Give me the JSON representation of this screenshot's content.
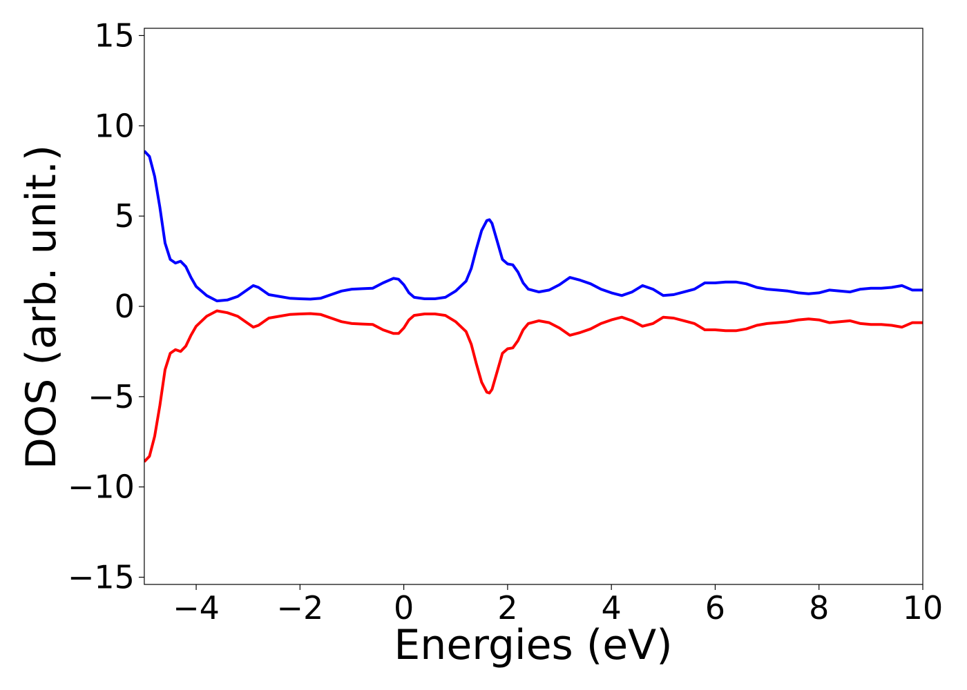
{
  "chart_data": {
    "type": "line",
    "xlabel": "Energies (eV)",
    "ylabel": "DOS (arb. unit.)",
    "x": [
      -5,
      -4.9,
      -4.8,
      -4.7,
      -4.6,
      -4.5,
      -4.4,
      -4.3,
      -4.2,
      -4.1,
      -4.0,
      -3.8,
      -3.6,
      -3.4,
      -3.2,
      -3.0,
      -2.9,
      -2.8,
      -2.6,
      -2.4,
      -2.2,
      -2.0,
      -1.8,
      -1.6,
      -1.4,
      -1.2,
      -1.0,
      -0.8,
      -0.6,
      -0.4,
      -0.2,
      -0.1,
      0,
      0.1,
      0.2,
      0.4,
      0.6,
      0.8,
      1.0,
      1.2,
      1.3,
      1.4,
      1.5,
      1.6,
      1.65,
      1.7,
      1.8,
      1.9,
      2.0,
      2.1,
      2.2,
      2.3,
      2.4,
      2.6,
      2.8,
      3.0,
      3.2,
      3.4,
      3.6,
      3.8,
      4.0,
      4.2,
      4.4,
      4.6,
      4.8,
      5.0,
      5.2,
      5.4,
      5.6,
      5.8,
      6.0,
      6.2,
      6.4,
      6.6,
      6.8,
      7.0,
      7.2,
      7.4,
      7.6,
      7.8,
      8.0,
      8.2,
      8.4,
      8.6,
      8.8,
      9.0,
      9.2,
      9.4,
      9.6,
      9.8,
      10
    ],
    "series": [
      {
        "color": "#0000ff",
        "values": [
          8.6,
          8.3,
          7.2,
          5.5,
          3.5,
          2.6,
          2.4,
          2.5,
          2.2,
          1.6,
          1.1,
          0.6,
          0.3,
          0.35,
          0.55,
          0.95,
          1.15,
          1.05,
          0.65,
          0.55,
          0.45,
          0.42,
          0.4,
          0.45,
          0.65,
          0.85,
          0.95,
          0.98,
          1.0,
          1.3,
          1.55,
          1.5,
          1.2,
          0.75,
          0.5,
          0.42,
          0.42,
          0.5,
          0.85,
          1.4,
          2.1,
          3.2,
          4.2,
          4.75,
          4.8,
          4.6,
          3.6,
          2.6,
          2.35,
          2.3,
          1.9,
          1.3,
          0.95,
          0.8,
          0.9,
          1.2,
          1.6,
          1.45,
          1.25,
          0.95,
          0.75,
          0.6,
          0.8,
          1.15,
          0.95,
          0.6,
          0.65,
          0.8,
          0.95,
          1.3,
          1.3,
          1.35,
          1.35,
          1.25,
          1.05,
          0.95,
          0.9,
          0.85,
          0.75,
          0.7,
          0.75,
          0.9,
          0.85,
          0.8,
          0.95,
          1.0,
          1.0,
          1.05,
          1.15,
          0.9,
          0.9
        ]
      },
      {
        "color": "#ff0000",
        "values": [
          -8.6,
          -8.3,
          -7.2,
          -5.5,
          -3.5,
          -2.6,
          -2.4,
          -2.5,
          -2.2,
          -1.6,
          -1.1,
          -0.55,
          -0.25,
          -0.35,
          -0.55,
          -0.95,
          -1.15,
          -1.05,
          -0.65,
          -0.55,
          -0.45,
          -0.42,
          -0.4,
          -0.45,
          -0.65,
          -0.85,
          -0.95,
          -0.98,
          -1.0,
          -1.3,
          -1.5,
          -1.5,
          -1.2,
          -0.75,
          -0.5,
          -0.42,
          -0.42,
          -0.5,
          -0.85,
          -1.4,
          -2.1,
          -3.2,
          -4.2,
          -4.75,
          -4.8,
          -4.6,
          -3.6,
          -2.6,
          -2.35,
          -2.3,
          -1.9,
          -1.3,
          -0.95,
          -0.8,
          -0.9,
          -1.2,
          -1.6,
          -1.45,
          -1.25,
          -0.95,
          -0.75,
          -0.6,
          -0.8,
          -1.1,
          -0.95,
          -0.6,
          -0.65,
          -0.8,
          -0.95,
          -1.3,
          -1.3,
          -1.35,
          -1.35,
          -1.25,
          -1.05,
          -0.95,
          -0.9,
          -0.85,
          -0.75,
          -0.7,
          -0.75,
          -0.9,
          -0.85,
          -0.8,
          -0.95,
          -1.0,
          -1.0,
          -1.05,
          -1.15,
          -0.9,
          -0.9
        ]
      }
    ],
    "xlim": [
      -5,
      10
    ],
    "xticks": [
      {
        "value": -4,
        "label": "−4"
      },
      {
        "value": -2,
        "label": "−2"
      },
      0,
      2,
      4,
      6,
      8,
      10
    ],
    "ylim": [
      -15.4,
      15.4
    ],
    "yticks": [
      {
        "value": -15,
        "label": "−15"
      },
      {
        "value": -10,
        "label": "−10"
      },
      {
        "value": -5,
        "label": "−5"
      },
      0,
      5,
      10,
      15
    ],
    "grid": false
  }
}
